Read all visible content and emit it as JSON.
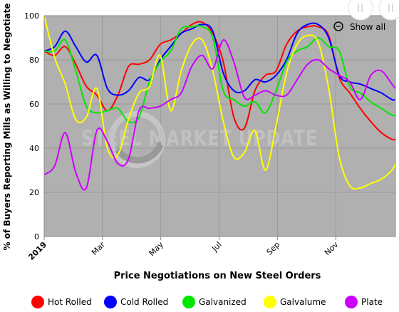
{
  "chart_data": {
    "type": "line",
    "title": "",
    "xlabel": "Price Negotiations on New Steel Orders",
    "ylabel": "% of Buyers Reporting Mills as Willing to Negotiate",
    "ylim": [
      0,
      100
    ],
    "yticks": [
      0,
      20,
      40,
      60,
      80,
      100
    ],
    "xlim": [
      0,
      50
    ],
    "xticks": [
      {
        "label": "2019",
        "x": 0,
        "bold": true
      },
      {
        "label": "Mar",
        "x": 8.3
      },
      {
        "label": "May",
        "x": 16.6
      },
      {
        "label": "Jul",
        "x": 24.9
      },
      {
        "label": "Sep",
        "x": 33.2
      },
      {
        "label": "Nov",
        "x": 41.5
      }
    ],
    "grid": true,
    "legend_position": "bottom",
    "series": [
      {
        "name": "Hot Rolled",
        "color": "#ff0000",
        "x": [
          0,
          1.5,
          3,
          4.5,
          6,
          7.5,
          9,
          10.5,
          12,
          13.5,
          15,
          16.5,
          18,
          19.5,
          21,
          22.5,
          24,
          25.5,
          27,
          28.5,
          30,
          31.5,
          33,
          34.5,
          36,
          37.5,
          39,
          40.5,
          42,
          43.5,
          45,
          46.5,
          48,
          49.5,
          50
        ],
        "y": [
          84,
          82,
          86,
          78,
          68,
          64,
          57,
          64,
          77,
          78,
          80,
          87,
          89,
          92,
          96,
          97,
          92,
          79,
          54,
          49,
          66,
          73,
          75,
          87,
          93,
          95,
          95,
          91,
          72,
          65,
          58,
          52,
          47,
          44,
          44
        ]
      },
      {
        "name": "Cold Rolled",
        "color": "#0000ff",
        "x": [
          0,
          1.5,
          3,
          4.5,
          6,
          7.5,
          9,
          10.5,
          12,
          13.5,
          15,
          16.5,
          18,
          19.5,
          21,
          22.5,
          24,
          25.5,
          27,
          28.5,
          30,
          31.5,
          33,
          34.5,
          36,
          37.5,
          39,
          40.5,
          42,
          43.5,
          45,
          46.5,
          48,
          49.5,
          50
        ],
        "y": [
          84,
          86,
          93,
          86,
          79,
          82,
          67,
          64,
          66,
          72,
          71,
          80,
          86,
          92,
          94,
          96,
          93,
          74,
          66,
          66,
          71,
          70,
          73,
          80,
          92,
          96,
          96,
          90,
          73,
          70,
          69,
          67,
          65,
          62,
          62
        ]
      },
      {
        "name": "Galvanized",
        "color": "#00e600",
        "x": [
          0,
          1.5,
          3,
          4.5,
          6,
          7.5,
          9,
          10.5,
          12,
          13.5,
          15,
          16.5,
          18,
          19.5,
          21,
          22.5,
          24,
          25.5,
          27,
          28.5,
          30,
          31.5,
          33,
          34.5,
          36,
          37.5,
          39,
          40.5,
          42,
          43.5,
          45,
          46.5,
          48,
          49.5,
          50
        ],
        "y": [
          84,
          84,
          89,
          75,
          59,
          56,
          57,
          58,
          52,
          54,
          70,
          79,
          84,
          94,
          95,
          95,
          90,
          66,
          62,
          59,
          61,
          56,
          66,
          79,
          84,
          86,
          90,
          86,
          84,
          68,
          65,
          61,
          58,
          55,
          55
        ]
      },
      {
        "name": "Galvalume",
        "color": "#ffff00",
        "x": [
          0,
          1.5,
          3,
          4.5,
          6,
          7.5,
          9,
          10.5,
          12,
          13.5,
          15,
          16.5,
          18,
          19.5,
          21,
          22.5,
          24,
          25.5,
          27,
          28.5,
          30,
          31.5,
          33,
          34.5,
          36,
          37.5,
          39,
          40.5,
          42,
          43.5,
          45,
          46.5,
          48,
          49.5,
          50
        ],
        "y": [
          100,
          81,
          69,
          53,
          54,
          67,
          40,
          37,
          53,
          65,
          68,
          82,
          57,
          75,
          87,
          89,
          75,
          52,
          36,
          38,
          48,
          30,
          50,
          74,
          87,
          91,
          88,
          67,
          36,
          23,
          22,
          24,
          26,
          30,
          33
        ]
      },
      {
        "name": "Plate",
        "color": "#cc00ff",
        "x": [
          0,
          1.5,
          3,
          4.5,
          6,
          7.5,
          9,
          10.5,
          12,
          13.5,
          15,
          16.5,
          18,
          19.5,
          21,
          22.5,
          24,
          25.5,
          27,
          28.5,
          30,
          31.5,
          33,
          34.5,
          36,
          37.5,
          39,
          40.5,
          42,
          43.5,
          45,
          46.5,
          48,
          49.5,
          50
        ],
        "y": [
          28,
          32,
          47,
          29,
          22,
          48,
          43,
          33,
          35,
          57,
          58,
          59,
          62,
          65,
          77,
          82,
          76,
          89,
          79,
          63,
          64,
          66,
          64,
          64,
          71,
          78,
          80,
          76,
          73,
          70,
          62,
          73,
          75,
          69,
          67
        ]
      }
    ]
  },
  "ui": {
    "show_all_label": "Show all",
    "watermark_text": "STEEL MARKET UPDATE"
  }
}
